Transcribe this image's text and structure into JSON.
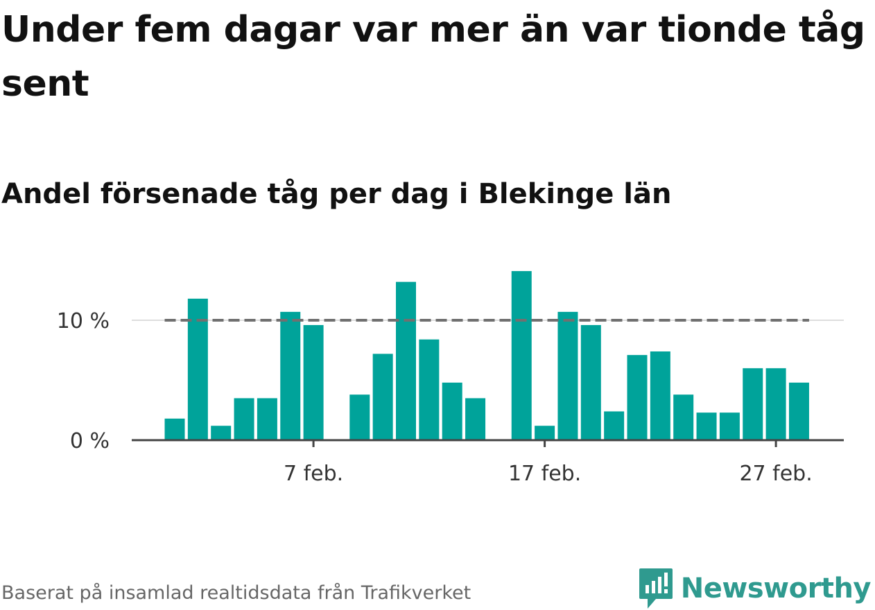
{
  "title": "Under fem dagar var mer än var tionde tåg sent",
  "subtitle": "Andel försenade tåg per dag i Blekinge län",
  "source": "Baserat på insamlad realtidsdata från Trafikverket",
  "brand": "Newsworthy",
  "colors": {
    "bar": "#00a39a",
    "reference_line": "#707070",
    "axis": "#444444",
    "brand": "#2f9a8f"
  },
  "chart_data": {
    "type": "bar",
    "x_unit": "date",
    "x": [
      "2/1",
      "2/2",
      "2/3",
      "2/4",
      "2/5",
      "2/6",
      "2/7",
      "2/8",
      "2/9",
      "2/10",
      "2/11",
      "2/12",
      "2/13",
      "2/14",
      "2/15",
      "2/16",
      "2/17",
      "2/18",
      "2/19",
      "2/20",
      "2/21",
      "2/22",
      "2/23",
      "2/24",
      "2/25",
      "2/26",
      "2/27",
      "2/28"
    ],
    "values": [
      1.8,
      11.8,
      1.2,
      3.5,
      3.5,
      10.7,
      9.6,
      null,
      3.8,
      7.2,
      13.2,
      8.4,
      4.8,
      3.5,
      null,
      14.1,
      1.2,
      10.7,
      9.6,
      2.4,
      7.1,
      7.4,
      3.8,
      2.3,
      2.3,
      6.0,
      6.0,
      4.8
    ],
    "unit": "%",
    "ylim": [
      0,
      15
    ],
    "yticks": [
      {
        "value": 0,
        "label": "0 %"
      },
      {
        "value": 10,
        "label": "10 %"
      }
    ],
    "xticks": [
      {
        "date": "2/7",
        "label": "7 feb."
      },
      {
        "date": "2/17",
        "label": "17 feb."
      },
      {
        "date": "2/27",
        "label": "27 feb."
      }
    ],
    "reference_line": 10,
    "grid": "horizontal at ticks"
  }
}
